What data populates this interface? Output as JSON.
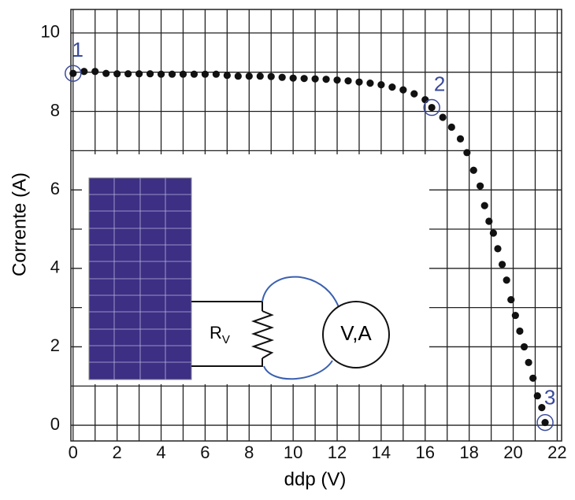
{
  "chart_data": {
    "type": "scatter",
    "x_label": "ddp (V)",
    "y_label": "Corrente (A)",
    "x": [
      0,
      0.5,
      1,
      1.5,
      2,
      2.5,
      3,
      3.5,
      4,
      4.5,
      5,
      5.5,
      6,
      6.5,
      7,
      7.5,
      8,
      8.5,
      9,
      9.5,
      10,
      10.5,
      11,
      11.5,
      12,
      12.5,
      13,
      13.5,
      14,
      14.5,
      15,
      15.5,
      16,
      16.3,
      16.8,
      17.2,
      17.6,
      17.9,
      18.2,
      18.5,
      18.7,
      18.9,
      19.1,
      19.3,
      19.5,
      19.7,
      19.9,
      20.1,
      20.3,
      20.5,
      20.7,
      20.9,
      21.1,
      21.3,
      21.45
    ],
    "values": [
      8.97,
      9.02,
      9.02,
      8.97,
      8.96,
      8.96,
      8.96,
      8.96,
      8.95,
      8.95,
      8.95,
      8.95,
      8.95,
      8.95,
      8.92,
      8.9,
      8.9,
      8.9,
      8.89,
      8.87,
      8.85,
      8.84,
      8.83,
      8.82,
      8.8,
      8.78,
      8.75,
      8.72,
      8.68,
      8.62,
      8.55,
      8.45,
      8.3,
      8.1,
      7.85,
      7.6,
      7.3,
      6.95,
      6.5,
      6.1,
      5.6,
      5.2,
      4.9,
      4.5,
      4.1,
      3.7,
      3.2,
      2.8,
      2.4,
      2.0,
      1.6,
      1.2,
      0.75,
      0.45,
      0.07
    ],
    "color": "#111111",
    "xlim": [
      -0.1,
      22.2
    ],
    "ylim": [
      -0.4,
      10.6
    ],
    "xticks": [
      0,
      2,
      4,
      6,
      8,
      10,
      12,
      14,
      16,
      18,
      20,
      22
    ],
    "yticks": [
      0,
      2,
      4,
      6,
      8,
      10
    ],
    "x_minor_grid": [
      1,
      3,
      5,
      7,
      9,
      11,
      13,
      15,
      17,
      19,
      21
    ],
    "y_minor_grid": [
      1,
      3,
      5,
      7,
      9
    ],
    "grid": true,
    "annotations": [
      {
        "text": "1",
        "x": 0,
        "y": 8.97
      },
      {
        "text": "2",
        "x": 16.3,
        "y": 8.1
      },
      {
        "text": "3",
        "x": 21.45,
        "y": 0.07
      }
    ],
    "annotation_color": "#3a4a9a",
    "inset": {
      "resistor_label": "R",
      "resistor_subscript": "V",
      "meter_label": "V,A"
    }
  }
}
